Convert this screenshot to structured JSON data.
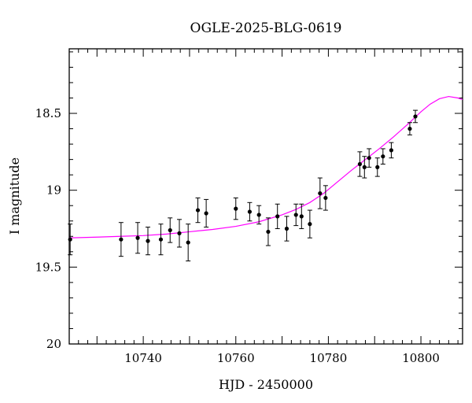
{
  "chart_data": {
    "type": "scatter",
    "title": "OGLE-2025-BLG-0619",
    "xlabel": "HJD - 2450000",
    "ylabel": "I magnitude",
    "xlim": [
      10724,
      10809
    ],
    "ylim": [
      20,
      18.08
    ],
    "y_inverted": true,
    "grid": false,
    "x_ticks": [
      10740,
      10760,
      10780,
      10800
    ],
    "x_tick_labels": [
      "10740",
      "10760",
      "10780",
      "10800"
    ],
    "y_ticks": [
      18.5,
      19,
      19.5,
      20
    ],
    "y_tick_labels": [
      "18.5",
      "19",
      "19.5",
      "20"
    ],
    "model_color": "#ff00ff",
    "point_color": "#000000",
    "series": [
      {
        "x": [
          10724.2,
          10735.2,
          10738.8,
          10741.0,
          10743.8,
          10745.8,
          10747.8,
          10749.7,
          10751.8,
          10753.6,
          10760.0,
          10763.0,
          10765.0,
          10767.0,
          10769.0,
          10771.0,
          10773.0,
          10774.2,
          10776.0,
          10778.2,
          10779.4,
          10786.8,
          10787.8,
          10788.8,
          10790.6,
          10791.8,
          10793.6,
          10797.6,
          10798.8
        ],
        "y": [
          19.32,
          19.32,
          19.31,
          19.33,
          19.32,
          19.26,
          19.28,
          19.34,
          19.13,
          19.15,
          19.12,
          19.14,
          19.16,
          19.27,
          19.17,
          19.25,
          19.16,
          19.17,
          19.22,
          19.02,
          19.05,
          18.83,
          18.85,
          18.79,
          18.85,
          18.78,
          18.74,
          18.6,
          18.52
        ],
        "err": [
          0.1,
          0.11,
          0.1,
          0.09,
          0.1,
          0.08,
          0.09,
          0.12,
          0.08,
          0.09,
          0.07,
          0.06,
          0.06,
          0.09,
          0.08,
          0.08,
          0.07,
          0.08,
          0.09,
          0.1,
          0.08,
          0.08,
          0.07,
          0.06,
          0.06,
          0.05,
          0.05,
          0.04,
          0.04
        ]
      }
    ],
    "model": {
      "x": [
        10724,
        10730,
        10735,
        10740,
        10745,
        10750,
        10755,
        10760,
        10765,
        10770,
        10773,
        10776,
        10779,
        10782,
        10785,
        10788,
        10791,
        10794,
        10797,
        10800,
        10802,
        10804,
        10806,
        10808,
        10809
      ],
      "y": [
        19.31,
        19.305,
        19.3,
        19.295,
        19.285,
        19.27,
        19.255,
        19.235,
        19.205,
        19.16,
        19.125,
        19.08,
        19.02,
        18.945,
        18.87,
        18.8,
        18.73,
        18.655,
        18.575,
        18.49,
        18.44,
        18.405,
        18.39,
        18.4,
        18.41
      ]
    }
  }
}
